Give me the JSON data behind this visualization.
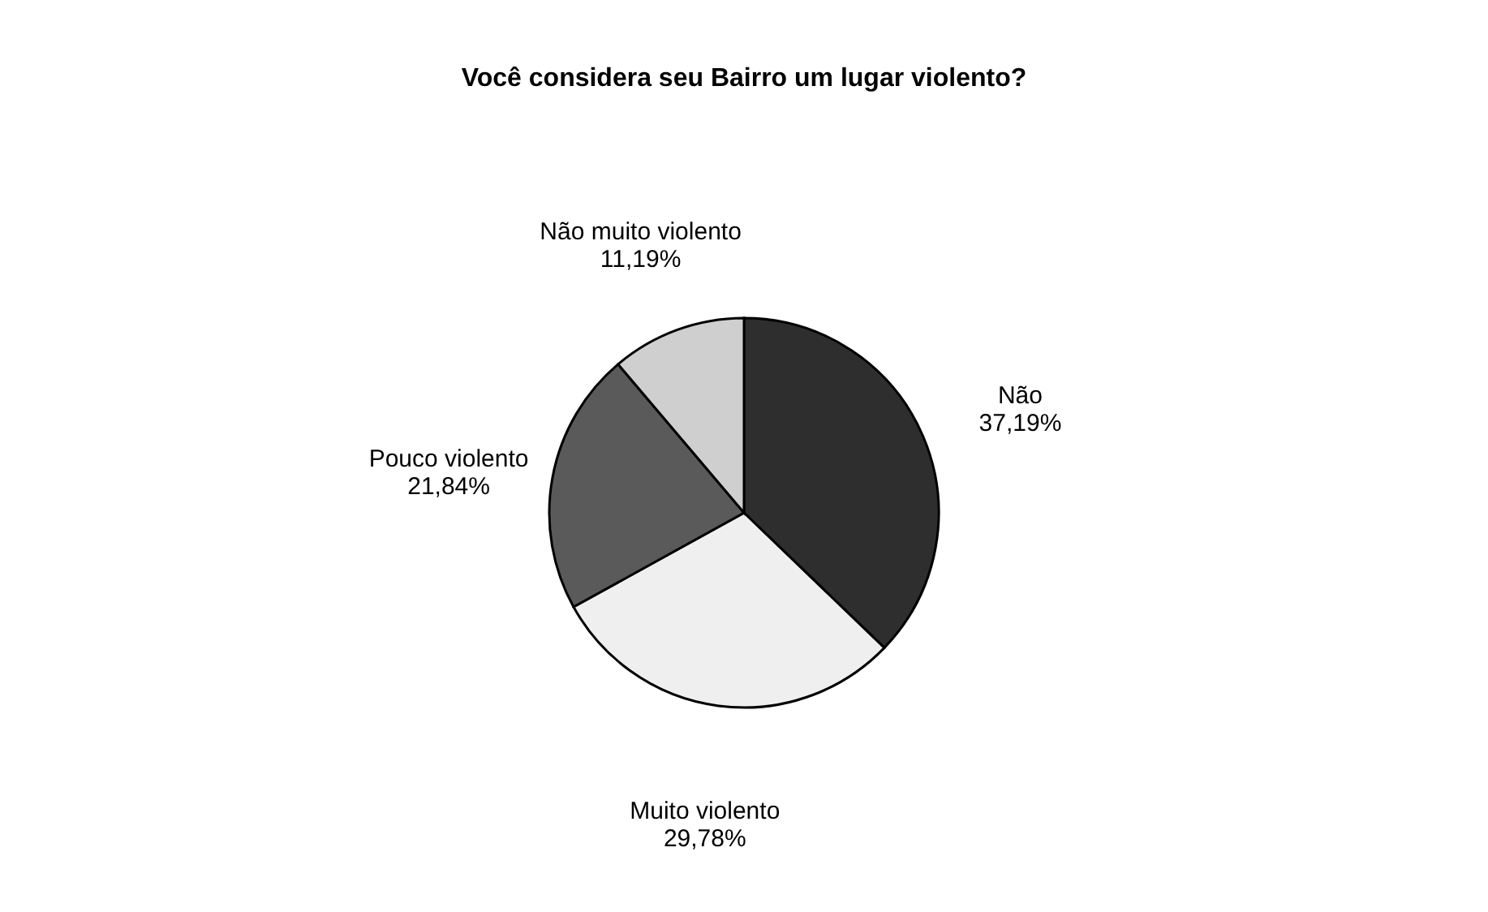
{
  "chart_data": {
    "type": "pie",
    "title": "Você considera seu Bairro um lugar violento?",
    "categories": [
      "Não",
      "Muito violento",
      "Pouco violento",
      "Não muito violento"
    ],
    "values": [
      37.19,
      29.78,
      21.84,
      11.19
    ],
    "colors": [
      "#2e2e2e",
      "#efefef",
      "#5a5a5a",
      "#cfcfcf"
    ],
    "value_labels": [
      "37,19%",
      "29,78%",
      "21,84%",
      "11,19%"
    ],
    "legend": false
  }
}
